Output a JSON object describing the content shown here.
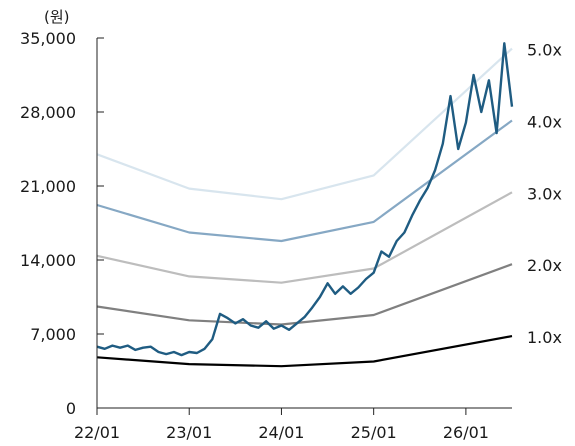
{
  "chart_data": {
    "type": "line",
    "y_unit_label": "(원)",
    "ylim": [
      0,
      35000
    ],
    "y_ticks": [
      0,
      7000,
      14000,
      21000,
      28000,
      35000
    ],
    "y_tick_labels": [
      "0",
      "7,000",
      "14,000",
      "21,000",
      "28,000",
      "35,000"
    ],
    "x_range": [
      "2022-01",
      "2026-07"
    ],
    "x_ticks": [
      "2022-01",
      "2023-01",
      "2024-01",
      "2025-01",
      "2026-01"
    ],
    "x_tick_labels": [
      "22/01",
      "23/01",
      "24/01",
      "25/01",
      "26/01"
    ],
    "grid": false,
    "price": [
      [
        "2022-01",
        5800
      ],
      [
        "2022-02",
        5600
      ],
      [
        "2022-03",
        5900
      ],
      [
        "2022-04",
        5700
      ],
      [
        "2022-05",
        5900
      ],
      [
        "2022-06",
        5500
      ],
      [
        "2022-07",
        5700
      ],
      [
        "2022-08",
        5800
      ],
      [
        "2022-09",
        5300
      ],
      [
        "2022-10",
        5100
      ],
      [
        "2022-11",
        5300
      ],
      [
        "2022-12",
        5000
      ],
      [
        "2023-01",
        5300
      ],
      [
        "2023-02",
        5200
      ],
      [
        "2023-03",
        5600
      ],
      [
        "2023-04",
        6500
      ],
      [
        "2023-05",
        8900
      ],
      [
        "2023-06",
        8500
      ],
      [
        "2023-07",
        8000
      ],
      [
        "2023-08",
        8400
      ],
      [
        "2023-09",
        7800
      ],
      [
        "2023-10",
        7600
      ],
      [
        "2023-11",
        8200
      ],
      [
        "2023-12",
        7500
      ],
      [
        "2024-01",
        7800
      ],
      [
        "2024-02",
        7400
      ],
      [
        "2024-03",
        8000
      ],
      [
        "2024-04",
        8600
      ],
      [
        "2024-05",
        9500
      ],
      [
        "2024-06",
        10500
      ],
      [
        "2024-07",
        11800
      ],
      [
        "2024-08",
        10800
      ],
      [
        "2024-09",
        11500
      ],
      [
        "2024-10",
        10800
      ],
      [
        "2024-11",
        11400
      ],
      [
        "2024-12",
        12200
      ],
      [
        "2025-01",
        12800
      ],
      [
        "2025-02",
        14800
      ],
      [
        "2025-03",
        14300
      ],
      [
        "2025-04",
        15800
      ],
      [
        "2025-05",
        16600
      ],
      [
        "2025-06",
        18200
      ],
      [
        "2025-07",
        19600
      ],
      [
        "2025-08",
        20800
      ],
      [
        "2025-09",
        22500
      ],
      [
        "2025-10",
        25000
      ],
      [
        "2025-11",
        29500
      ],
      [
        "2025-12",
        24500
      ],
      [
        "2026-01",
        27000
      ],
      [
        "2026-02",
        31500
      ],
      [
        "2026-03",
        28000
      ],
      [
        "2026-04",
        31000
      ],
      [
        "2026-05",
        26000
      ],
      [
        "2026-06",
        34500
      ],
      [
        "2026-07",
        28500
      ]
    ],
    "price_color": "#1f5c82",
    "series": [
      {
        "label": "1.0x",
        "color": "#000000",
        "points": [
          [
            "2022-01",
            4800
          ],
          [
            "2023-01",
            4150
          ],
          [
            "2024-01",
            3950
          ],
          [
            "2025-01",
            4400
          ],
          [
            "2026-07",
            6800
          ]
        ]
      },
      {
        "label": "2.0x",
        "color": "#808080",
        "points": [
          [
            "2022-01",
            9600
          ],
          [
            "2023-01",
            8300
          ],
          [
            "2024-01",
            7900
          ],
          [
            "2025-01",
            8800
          ],
          [
            "2026-07",
            13600
          ]
        ]
      },
      {
        "label": "3.0x",
        "color": "#bdbdbd",
        "points": [
          [
            "2022-01",
            14400
          ],
          [
            "2023-01",
            12450
          ],
          [
            "2024-01",
            11850
          ],
          [
            "2025-01",
            13200
          ],
          [
            "2026-07",
            20400
          ]
        ]
      },
      {
        "label": "4.0x",
        "color": "#86a8c4",
        "points": [
          [
            "2022-01",
            19200
          ],
          [
            "2023-01",
            16600
          ],
          [
            "2024-01",
            15800
          ],
          [
            "2025-01",
            17600
          ],
          [
            "2026-07",
            27200
          ]
        ]
      },
      {
        "label": "5.0x",
        "color": "#d8e5ee",
        "points": [
          [
            "2022-01",
            24000
          ],
          [
            "2023-01",
            20750
          ],
          [
            "2024-01",
            19750
          ],
          [
            "2025-01",
            22000
          ],
          [
            "2026-07",
            34000
          ]
        ]
      }
    ]
  }
}
